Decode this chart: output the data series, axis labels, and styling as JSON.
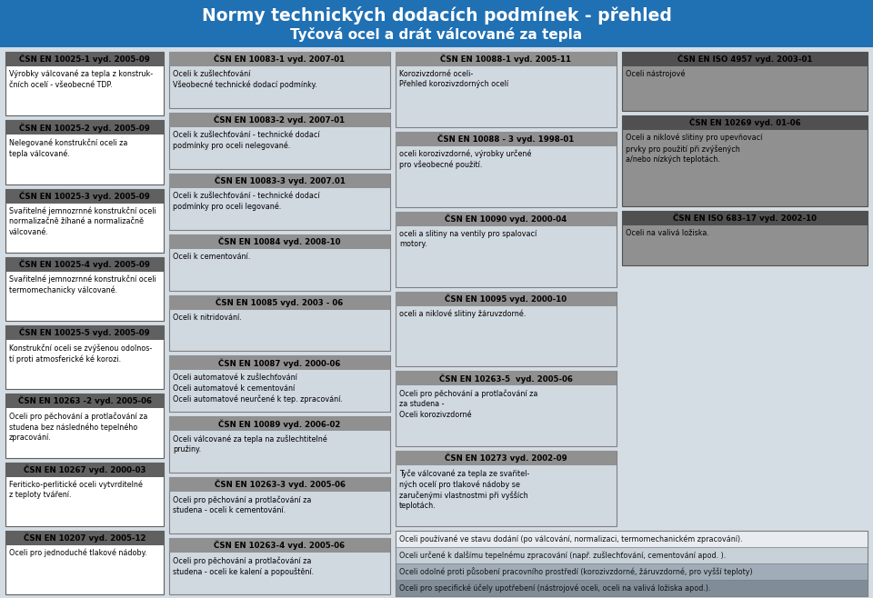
{
  "title_line1": "Normy technických dodacích podmínek - přehled",
  "title_line2": "Tyčová ocel a drát válcované za tepla",
  "title_bg": "#2070b4",
  "title_color": "#ffffff",
  "bg_color": "#d4dce4",
  "col1_boxes": [
    {
      "header": "ČSN EN 10025-1 vyd. 2005-09",
      "body": "Výrobky válcované za tepla z konstruk-\nčních ocelí - všeobecné TDP.",
      "style": "light"
    },
    {
      "header": "ČSN EN 10025-2 vyd. 2005-09",
      "body": "Nelegované konstrukční oceli za\ntepla válcované.",
      "style": "light"
    },
    {
      "header": "ČSN EN 10025-3 vyd. 2005-09",
      "body": "Svařitelné jemnozrnné konstrukční oceli\nnormalizačně žíhané a normalizačně\nválcované.",
      "style": "light"
    },
    {
      "header": "ČSN EN 10025-4 vyd. 2005-09",
      "body": "Svařitelné jemnozrnné konstrukční oceli\ntermomechanicky válcované.",
      "style": "light"
    },
    {
      "header": "ČSN EN 10025-5 vyd. 2005-09",
      "body": "Konstrukční oceli se zvýšenou odolnos-\ntí proti atmosferické ké korozi.",
      "style": "light"
    },
    {
      "header": "ČSN EN 10263 -2 vyd. 2005-06",
      "body": "Oceli pro pěchování a protlačování za\nstudena bez následného tepelného\nzpracování.",
      "style": "light"
    },
    {
      "header": "ČSN EN 10267 vyd. 2000-03",
      "body": "Feriticko-perlitické oceli vytvrditelné\nz teploty tváření.",
      "style": "light"
    },
    {
      "header": "ČSN EN 10207 vyd. 2005-12",
      "body": "Oceli pro jednoduché tlakové nádoby.",
      "style": "light"
    }
  ],
  "col2_boxes": [
    {
      "header": "ČSN EN 10083-1 vyd. 2007-01",
      "body": "Oceli k zušlechťování\nVšeobecné technické dodací podmínky.",
      "style": "medium"
    },
    {
      "header": "ČSN EN 10083-2 vyd. 2007-01",
      "body": "Oceli k zušlechťování - technické dodací\npodmínky pro oceli nelegované.",
      "style": "medium"
    },
    {
      "header": "ČSN EN 10083-3 vyd. 2007.01",
      "body": "Oceli k zušlechťování - technické dodací\npodmínky pro oceli legované.",
      "style": "medium"
    },
    {
      "header": "ČSN EN 10084 vyd. 2008-10",
      "body": "Oceli k cementování.",
      "style": "medium"
    },
    {
      "header": "ČSN EN 10085 vyd. 2003 - 06",
      "body": "Oceli k nitridování.",
      "style": "medium"
    },
    {
      "header": "ČSN EN 10087 vyd. 2000-06",
      "body": "Oceli automatové k zušlechťování\nOceli automatové k cementování\nOceli automatové neurčené k tep. zpracování.",
      "style": "medium"
    },
    {
      "header": "ČSN EN 10089 vyd. 2006-02",
      "body": "Oceli válcované za tepla na zušlechtitelné\npružiny.",
      "style": "medium"
    },
    {
      "header": "ČSN EN 10263-3 vyd. 2005-06",
      "body": "Oceli pro pěchování a protlačování za\nstudena - oceli k cementování.",
      "style": "medium"
    },
    {
      "header": "ČSN EN 10263-4 vyd. 2005-06",
      "body": "Oceli pro pěchování a protlačování za\nstudena - oceli ke kalení a popouštění.",
      "style": "medium"
    }
  ],
  "col3_boxes": [
    {
      "header": "ČSN EN 10088-1 vyd. 2005-11",
      "body": "Korozivzdorné oceli-\nPřehled korozivzdorných ocelí",
      "style": "medium"
    },
    {
      "header": "ČSN EN 10088 - 3 vyd. 1998-01",
      "body": "oceli korozivzdorné, výrobky určené\npro všeobecné použití.",
      "style": "medium"
    },
    {
      "header": "ČSN EN 10090 vyd. 2000-04",
      "body": "oceli a slitiny na ventily pro spalovací\nmotory.",
      "style": "medium"
    },
    {
      "header": "ČSN EN 10095 vyd. 2000-10",
      "body": "oceli a niklové slitiny žáruvzdorné.",
      "style": "medium"
    },
    {
      "header": "ČSN EN 10263-5  vyd. 2005-06",
      "body": "Oceli pro pěchování a protlačování za\nza studena -\nOceli korozivzdorné",
      "style": "medium"
    },
    {
      "header": "ČSN EN 10273 vyd. 2002-09",
      "body": "Tyče válcované za tepla ze svařitel-\nných ocelí pro tlakové nádoby se\nzaručenými vlastnostmi při vyšších\nteplotách.",
      "style": "medium"
    }
  ],
  "col4_boxes": [
    {
      "header": "ČSN EN ISO 4957 vyd. 2003-01",
      "body": "Oceli nástrojové",
      "style": "dark"
    },
    {
      "header": "ČSN EN 10269 vyd. 01-06",
      "body": "Oceli a niklové slitiny pro upevňovací\nprvky pro použití při zvýšených\na/nebo nízkých teplotách.",
      "style": "dark"
    },
    {
      "header": "ČSN EN ISO 683-17 vyd. 2002-10",
      "body": "Oceli na valivá ložiska.",
      "style": "dark"
    }
  ],
  "footer_lines": [
    "Oceli používané ve stavu dodání (po válcování, normalizaci, termomechanickém zpracování).",
    "Oceli určené k dalšímu tepelnému zpracování (např. zušlechťování, cementování apod. ).",
    "Oceli odolné proti působení pracovního prostředí (korozivzdorné, žáruvzdorné, pro vyšší teploty)",
    "Oceli pro specifické účely upotřebení (nástrojové oceli, oceli na valivá ložiska apod.)."
  ],
  "footer_row_colors": [
    "#e8ecf0",
    "#c8d0d8",
    "#a0adb8",
    "#808d98"
  ],
  "style_map": {
    "light": {
      "header_bg": "#606060",
      "body_bg": "#ffffff",
      "border": "#606060",
      "header_color": "#000000",
      "body_color": "#000000"
    },
    "medium": {
      "header_bg": "#909090",
      "body_bg": "#d0d8e0",
      "border": "#808080",
      "header_color": "#000000",
      "body_color": "#000000"
    },
    "dark": {
      "header_bg": "#505050",
      "body_bg": "#909090",
      "border": "#505050",
      "header_color": "#000000",
      "body_color": "#000000"
    }
  }
}
